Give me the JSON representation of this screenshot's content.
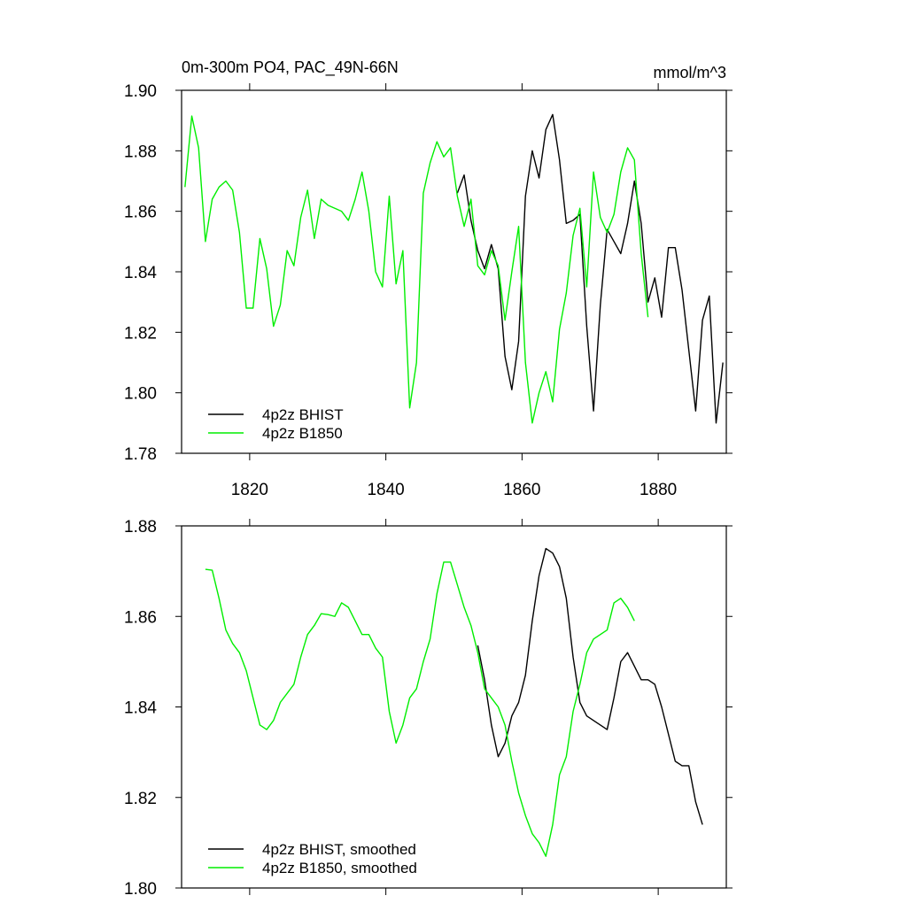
{
  "chart_data": [
    {
      "type": "line",
      "title": "0m-300m PO4, PAC_49N-66N",
      "units": "mmol/m^3",
      "xlim": [
        1810,
        1890
      ],
      "xticks": [
        1820,
        1840,
        1860,
        1880
      ],
      "xtick_labels": true,
      "ylim": [
        1.78,
        1.9
      ],
      "yticks": [
        1.78,
        {
          "value": 1.8,
          "label": "1.80"
        },
        1.82,
        1.84,
        1.86,
        1.88,
        {
          "value": 1.9,
          "label": "1.90"
        }
      ],
      "legend": "lower left",
      "series": [
        {
          "name": "4p2z BHIST",
          "color": "#000000",
          "x": [
            1850.5,
            1851.5,
            1852.5,
            1853.5,
            1854.5,
            1855.5,
            1856.5,
            1857.5,
            1858.5,
            1859.5,
            1860.5,
            1861.5,
            1862.5,
            1863.5,
            1864.5,
            1865.5,
            1866.5,
            1867.5,
            1868.5,
            1869.5,
            1870.5,
            1871.5,
            1872.5,
            1873.5,
            1874.5,
            1875.5,
            1876.5,
            1877.5,
            1878.5,
            1879.5,
            1880.5,
            1881.5,
            1882.5,
            1883.5,
            1884.5,
            1885.5,
            1886.5,
            1887.5,
            1888.5,
            1889.5
          ],
          "values": [
            1.866,
            1.872,
            1.857,
            1.847,
            1.841,
            1.849,
            1.841,
            1.812,
            1.801,
            1.817,
            1.865,
            1.88,
            1.871,
            1.887,
            1.892,
            1.877,
            1.856,
            1.857,
            1.859,
            1.822,
            1.794,
            1.829,
            1.854,
            1.85,
            1.846,
            1.856,
            1.87,
            1.856,
            1.83,
            1.838,
            1.825,
            1.848,
            1.848,
            1.834,
            1.814,
            1.794,
            1.824,
            1.832,
            1.79,
            1.81
          ]
        },
        {
          "name": "4p2z B1850",
          "color": "#00ee00",
          "x": [
            1810.5,
            1811.5,
            1812.5,
            1813.5,
            1814.5,
            1815.5,
            1816.5,
            1817.5,
            1818.5,
            1819.5,
            1820.5,
            1821.5,
            1822.5,
            1823.5,
            1824.5,
            1825.5,
            1826.5,
            1827.5,
            1828.5,
            1829.5,
            1830.5,
            1831.5,
            1832.5,
            1833.5,
            1834.5,
            1835.5,
            1836.5,
            1837.5,
            1838.5,
            1839.5,
            1840.5,
            1841.5,
            1842.5,
            1843.5,
            1844.5,
            1845.5,
            1846.5,
            1847.5,
            1848.5,
            1849.5,
            1850.5,
            1851.5,
            1852.5,
            1853.5,
            1854.5,
            1855.5,
            1856.5,
            1857.5,
            1858.5,
            1859.5,
            1860.5,
            1861.5,
            1862.5,
            1863.5,
            1864.5,
            1865.5,
            1866.5,
            1867.5,
            1868.5,
            1869.5,
            1870.5,
            1871.5,
            1872.5,
            1873.5,
            1874.5,
            1875.5,
            1876.5,
            1877.5,
            1878.5
          ],
          "values": [
            1.868,
            1.8915,
            1.881,
            1.85,
            1.864,
            1.868,
            1.87,
            1.867,
            1.853,
            1.828,
            1.828,
            1.851,
            1.841,
            1.822,
            1.829,
            1.847,
            1.842,
            1.858,
            1.867,
            1.851,
            1.864,
            1.862,
            1.861,
            1.86,
            1.857,
            1.864,
            1.873,
            1.86,
            1.84,
            1.835,
            1.865,
            1.836,
            1.847,
            1.795,
            1.81,
            1.866,
            1.876,
            1.883,
            1.878,
            1.881,
            1.865,
            1.855,
            1.864,
            1.842,
            1.839,
            1.847,
            1.842,
            1.824,
            1.84,
            1.855,
            1.81,
            1.79,
            1.8,
            1.807,
            1.797,
            1.821,
            1.833,
            1.852,
            1.861,
            1.835,
            1.873,
            1.858,
            1.853,
            1.859,
            1.873,
            1.881,
            1.877,
            1.846,
            1.825
          ]
        }
      ]
    },
    {
      "type": "line",
      "xlim": [
        1810,
        1890
      ],
      "xticks": [
        1820,
        1840,
        1860,
        1880
      ],
      "xtick_labels": false,
      "ylim": [
        1.8,
        1.88
      ],
      "yticks": [
        {
          "value": 1.8,
          "label": "1.80"
        },
        1.82,
        1.84,
        1.86,
        1.88
      ],
      "legend": "lower left",
      "series": [
        {
          "name": "4p2z BHIST, smoothed",
          "color": "#000000",
          "x": [
            1853.5,
            1854.5,
            1855.5,
            1856.5,
            1857.5,
            1858.5,
            1859.5,
            1860.5,
            1861.5,
            1862.5,
            1863.5,
            1864.5,
            1865.5,
            1866.5,
            1867.5,
            1868.5,
            1869.5,
            1870.5,
            1871.5,
            1872.5,
            1873.5,
            1874.5,
            1875.5,
            1876.5,
            1877.5,
            1878.5,
            1879.5,
            1880.5,
            1881.5,
            1882.5,
            1883.5,
            1884.5,
            1885.5,
            1886.5
          ],
          "values": [
            1.8536,
            1.846,
            1.836,
            1.829,
            1.832,
            1.838,
            1.841,
            1.847,
            1.859,
            1.869,
            1.875,
            1.874,
            1.871,
            1.864,
            1.851,
            1.841,
            1.838,
            1.837,
            1.836,
            1.835,
            1.842,
            1.85,
            1.852,
            1.849,
            1.846,
            1.846,
            1.845,
            1.84,
            1.834,
            1.828,
            1.827,
            1.827,
            1.819,
            1.814
          ]
        },
        {
          "name": "4p2z B1850, smoothed",
          "color": "#00ee00",
          "x": [
            1813.5,
            1814.5,
            1815.5,
            1816.5,
            1817.5,
            1818.5,
            1819.5,
            1820.5,
            1821.5,
            1822.5,
            1823.5,
            1824.5,
            1825.5,
            1826.5,
            1827.5,
            1828.5,
            1829.5,
            1830.5,
            1831.5,
            1832.5,
            1833.5,
            1834.5,
            1835.5,
            1836.5,
            1837.5,
            1838.5,
            1839.5,
            1840.5,
            1841.5,
            1842.5,
            1843.5,
            1844.5,
            1845.5,
            1846.5,
            1847.5,
            1848.5,
            1849.5,
            1850.5,
            1851.5,
            1852.5,
            1853.5,
            1854.5,
            1855.5,
            1856.5,
            1857.5,
            1858.5,
            1859.5,
            1860.5,
            1861.5,
            1862.5,
            1863.5,
            1864.5,
            1865.5,
            1866.5,
            1867.5,
            1868.5,
            1869.5,
            1870.5,
            1871.5,
            1872.5,
            1873.5,
            1874.5,
            1875.5,
            1876.5
          ],
          "values": [
            1.8704,
            1.8702,
            1.864,
            1.857,
            1.854,
            1.852,
            1.848,
            1.842,
            1.836,
            1.835,
            1.837,
            1.841,
            1.843,
            1.845,
            1.851,
            1.856,
            1.858,
            1.8606,
            1.8604,
            1.86,
            1.863,
            1.862,
            1.859,
            1.856,
            1.856,
            1.853,
            1.851,
            1.839,
            1.832,
            1.836,
            1.842,
            1.844,
            1.85,
            1.855,
            1.865,
            1.872,
            1.872,
            1.867,
            1.862,
            1.858,
            1.852,
            1.844,
            1.842,
            1.84,
            1.836,
            1.828,
            1.821,
            1.816,
            1.812,
            1.81,
            1.807,
            1.814,
            1.825,
            1.829,
            1.839,
            1.845,
            1.852,
            1.855,
            1.856,
            1.857,
            1.863,
            1.864,
            1.862,
            1.859
          ]
        }
      ]
    }
  ]
}
